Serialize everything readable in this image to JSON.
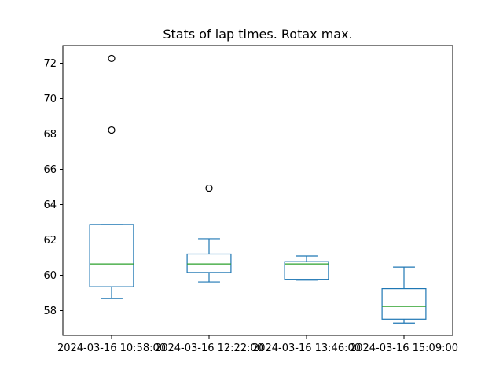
{
  "chart_data": {
    "type": "box",
    "title": "Stats of lap times. Rotax max.",
    "xlabel": "",
    "ylabel": "",
    "ylim": [
      56.6,
      73.0
    ],
    "yticks": [
      58,
      60,
      62,
      64,
      66,
      68,
      70,
      72
    ],
    "ytick_labels": [
      "58",
      "60",
      "62",
      "64",
      "66",
      "68",
      "70",
      "72"
    ],
    "grid": false,
    "legend": "none",
    "categories": [
      "2024-03-16 10:58:00",
      "2024-03-16 12:22:00",
      "2024-03-16 13:46:00",
      "2024-03-16 15:09:00"
    ],
    "boxes": [
      {
        "whisker_low": 58.68,
        "q1": 59.35,
        "median": 60.64,
        "q3": 62.87,
        "whisker_high": 62.87,
        "outliers": [
          68.22,
          72.27
        ]
      },
      {
        "whisker_low": 59.62,
        "q1": 60.16,
        "median": 60.64,
        "q3": 61.2,
        "whisker_high": 62.07,
        "outliers": [
          64.93
        ]
      },
      {
        "whisker_low": 59.72,
        "q1": 59.77,
        "median": 60.64,
        "q3": 60.77,
        "whisker_high": 61.09,
        "outliers": []
      },
      {
        "whisker_low": 57.3,
        "q1": 57.52,
        "median": 58.24,
        "q3": 59.24,
        "whisker_high": 60.46,
        "outliers": []
      }
    ],
    "colors": {
      "box": "#1f77b4",
      "median": "#2ca02c",
      "outlier": "#000000"
    }
  }
}
